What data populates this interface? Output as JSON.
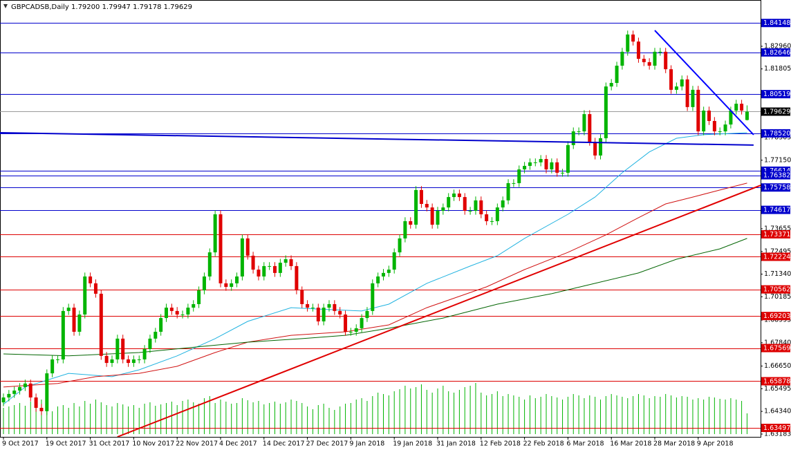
{
  "chart_data": {
    "type": "candlestick",
    "title": "GBPCADSB,Daily  1.79200 1.79947 1.79178 1.79629",
    "ylim": [
      1.6304,
      1.8532
    ],
    "yticks": [
      {
        "value": 1.8296,
        "label": "1.82960"
      },
      1.81805,
      1.78305,
      {
        "value": 1.7715,
        "label": "1.77150"
      },
      1.73655,
      1.72495,
      {
        "value": 1.7134,
        "label": "1.71340"
      },
      1.70185,
      1.68995,
      {
        "value": 1.6784,
        "label": "1.67840"
      },
      {
        "value": 1.6665,
        "label": "1.66650"
      },
      1.65495,
      {
        "value": 1.6434,
        "label": "1.64340"
      },
      1.63183
    ],
    "up_color": "#00b400",
    "down_color": "#e00000",
    "categories": [
      "9 Oct 2017",
      null,
      null,
      null,
      null,
      null,
      null,
      null,
      "19 Oct 2017",
      null,
      null,
      null,
      null,
      null,
      null,
      null,
      "31 Oct 2017",
      null,
      null,
      null,
      null,
      null,
      null,
      null,
      "10 Nov 2017",
      null,
      null,
      null,
      null,
      null,
      null,
      null,
      "22 Nov 2017",
      null,
      null,
      null,
      null,
      null,
      null,
      null,
      "4 Dec 2017",
      null,
      null,
      null,
      null,
      null,
      null,
      null,
      "14 Dec 2017",
      null,
      null,
      null,
      null,
      null,
      null,
      null,
      "27 Dec 2017",
      null,
      null,
      null,
      null,
      null,
      null,
      null,
      "9 Jan 2018",
      null,
      null,
      null,
      null,
      null,
      null,
      null,
      "19 Jan 2018",
      null,
      null,
      null,
      null,
      null,
      null,
      null,
      "31 Jan 2018",
      null,
      null,
      null,
      null,
      null,
      null,
      null,
      "12 Feb 2018",
      null,
      null,
      null,
      null,
      null,
      null,
      null,
      "22 Feb 2018",
      null,
      null,
      null,
      null,
      null,
      null,
      null,
      "6 Mar 2018",
      null,
      null,
      null,
      null,
      null,
      null,
      null,
      "16 Mar 2018",
      null,
      null,
      null,
      null,
      null,
      null,
      null,
      "28 Mar 2018",
      null,
      null,
      null,
      null,
      null,
      null,
      null,
      "9 Apr 2018",
      null,
      null,
      null,
      null,
      null,
      null,
      null,
      null,
      null
    ],
    "ohlc": [
      [
        1.648,
        1.6525,
        1.646,
        1.6505
      ],
      [
        1.6505,
        1.6543,
        1.6485,
        1.6523
      ],
      [
        1.6523,
        1.656,
        1.6503,
        1.654
      ],
      [
        1.654,
        1.6578,
        1.652,
        1.6558
      ],
      [
        1.6558,
        1.6596,
        1.6538,
        1.6576
      ],
      [
        1.6576,
        1.6596,
        1.6485,
        1.6505
      ],
      [
        1.6505,
        1.6525,
        1.6432,
        1.6452
      ],
      [
        1.6452,
        1.6472,
        1.6415,
        1.6435
      ],
      [
        1.6435,
        1.6648,
        1.6415,
        1.6628
      ],
      [
        1.6628,
        1.6719,
        1.6608,
        1.6699
      ],
      [
        1.6699,
        1.6719,
        1.6679,
        1.6699
      ],
      [
        1.6699,
        1.6966,
        1.6679,
        1.6946
      ],
      [
        1.6946,
        1.6983,
        1.6926,
        1.6963
      ],
      [
        1.6963,
        1.6983,
        1.682,
        1.684
      ],
      [
        1.684,
        1.6948,
        1.682,
        1.6928
      ],
      [
        1.6928,
        1.7142,
        1.6908,
        1.7122
      ],
      [
        1.7122,
        1.7142,
        1.7067,
        1.7087
      ],
      [
        1.7087,
        1.7107,
        1.7014,
        1.7034
      ],
      [
        1.7034,
        1.7054,
        1.6697,
        1.6717
      ],
      [
        1.6717,
        1.6737,
        1.6661,
        1.6681
      ],
      [
        1.6681,
        1.6719,
        1.6661,
        1.6699
      ],
      [
        1.6699,
        1.6825,
        1.6679,
        1.6805
      ],
      [
        1.6805,
        1.6825,
        1.6679,
        1.6699
      ],
      [
        1.6699,
        1.6719,
        1.6661,
        1.6681
      ],
      [
        1.6681,
        1.6719,
        1.6661,
        1.6699
      ],
      [
        1.6699,
        1.6719,
        1.6679,
        1.6699
      ],
      [
        1.6699,
        1.6772,
        1.6679,
        1.6752
      ],
      [
        1.6752,
        1.6825,
        1.6732,
        1.6805
      ],
      [
        1.6805,
        1.686,
        1.6785,
        1.684
      ],
      [
        1.684,
        1.693,
        1.682,
        1.691
      ],
      [
        1.691,
        1.6983,
        1.689,
        1.6963
      ],
      [
        1.6963,
        1.6983,
        1.6926,
        1.6946
      ],
      [
        1.6946,
        1.6966,
        1.6908,
        1.6928
      ],
      [
        1.6928,
        1.6948,
        1.6908,
        1.6928
      ],
      [
        1.6928,
        1.6983,
        1.6908,
        1.6963
      ],
      [
        1.6963,
        1.7001,
        1.6943,
        1.6981
      ],
      [
        1.6981,
        1.7071,
        1.6961,
        1.7051
      ],
      [
        1.7051,
        1.7142,
        1.7031,
        1.7122
      ],
      [
        1.7122,
        1.7265,
        1.7102,
        1.7245
      ],
      [
        1.7245,
        1.7459,
        1.7225,
        1.7439
      ],
      [
        1.7439,
        1.7459,
        1.7067,
        1.7087
      ],
      [
        1.7087,
        1.7107,
        1.7049,
        1.7069
      ],
      [
        1.7069,
        1.7107,
        1.7049,
        1.7087
      ],
      [
        1.7087,
        1.7142,
        1.7067,
        1.7122
      ],
      [
        1.7122,
        1.7336,
        1.7102,
        1.7316
      ],
      [
        1.7316,
        1.7336,
        1.7208,
        1.7228
      ],
      [
        1.7228,
        1.7248,
        1.7137,
        1.7157
      ],
      [
        1.7157,
        1.7177,
        1.7102,
        1.7122
      ],
      [
        1.7122,
        1.7195,
        1.7102,
        1.7175
      ],
      [
        1.7175,
        1.7195,
        1.7155,
        1.7175
      ],
      [
        1.7175,
        1.7195,
        1.712,
        1.714
      ],
      [
        1.714,
        1.7212,
        1.712,
        1.7192
      ],
      [
        1.7192,
        1.723,
        1.7172,
        1.721
      ],
      [
        1.721,
        1.723,
        1.7155,
        1.7175
      ],
      [
        1.7175,
        1.7195,
        1.7031,
        1.7051
      ],
      [
        1.7051,
        1.7071,
        1.6961,
        1.6981
      ],
      [
        1.6981,
        1.7001,
        1.6943,
        1.6963
      ],
      [
        1.6963,
        1.6983,
        1.6943,
        1.6963
      ],
      [
        1.6963,
        1.6983,
        1.6873,
        1.6893
      ],
      [
        1.6893,
        1.6983,
        1.6873,
        1.6963
      ],
      [
        1.6963,
        1.7001,
        1.6943,
        1.6981
      ],
      [
        1.6981,
        1.7001,
        1.6926,
        1.6946
      ],
      [
        1.6946,
        1.6966,
        1.6908,
        1.6928
      ],
      [
        1.6928,
        1.6948,
        1.682,
        1.684
      ],
      [
        1.684,
        1.686,
        1.682,
        1.684
      ],
      [
        1.684,
        1.6878,
        1.682,
        1.6858
      ],
      [
        1.6858,
        1.693,
        1.6838,
        1.691
      ],
      [
        1.691,
        1.6966,
        1.689,
        1.6946
      ],
      [
        1.6946,
        1.7107,
        1.6926,
        1.7087
      ],
      [
        1.7087,
        1.7142,
        1.7067,
        1.7122
      ],
      [
        1.7122,
        1.716,
        1.7102,
        1.714
      ],
      [
        1.714,
        1.7177,
        1.712,
        1.7157
      ],
      [
        1.7157,
        1.7265,
        1.7137,
        1.7245
      ],
      [
        1.7245,
        1.7336,
        1.7225,
        1.7316
      ],
      [
        1.7316,
        1.7424,
        1.7296,
        1.7404
      ],
      [
        1.7404,
        1.7424,
        1.7366,
        1.7386
      ],
      [
        1.7386,
        1.7583,
        1.7366,
        1.7563
      ],
      [
        1.7563,
        1.7583,
        1.7472,
        1.7492
      ],
      [
        1.7492,
        1.7512,
        1.7454,
        1.7474
      ],
      [
        1.7474,
        1.7494,
        1.7366,
        1.7386
      ],
      [
        1.7386,
        1.7477,
        1.7366,
        1.7457
      ],
      [
        1.7457,
        1.7494,
        1.7437,
        1.7474
      ],
      [
        1.7474,
        1.7547,
        1.7454,
        1.7527
      ],
      [
        1.7527,
        1.7565,
        1.7507,
        1.7545
      ],
      [
        1.7545,
        1.7565,
        1.7507,
        1.7527
      ],
      [
        1.7527,
        1.7547,
        1.7437,
        1.7457
      ],
      [
        1.7457,
        1.7477,
        1.7437,
        1.7457
      ],
      [
        1.7457,
        1.753,
        1.7437,
        1.751
      ],
      [
        1.751,
        1.753,
        1.7419,
        1.7439
      ],
      [
        1.7439,
        1.7459,
        1.7384,
        1.7404
      ],
      [
        1.7404,
        1.7424,
        1.7384,
        1.7404
      ],
      [
        1.7404,
        1.7494,
        1.7384,
        1.7474
      ],
      [
        1.7474,
        1.753,
        1.7454,
        1.751
      ],
      [
        1.751,
        1.7618,
        1.749,
        1.7598
      ],
      [
        1.7598,
        1.7618,
        1.7578,
        1.7598
      ],
      [
        1.7598,
        1.7688,
        1.7578,
        1.7668
      ],
      [
        1.7668,
        1.7706,
        1.7648,
        1.7686
      ],
      [
        1.7686,
        1.7724,
        1.7666,
        1.7704
      ],
      [
        1.7704,
        1.7724,
        1.7684,
        1.7704
      ],
      [
        1.7704,
        1.7741,
        1.7684,
        1.7721
      ],
      [
        1.7721,
        1.7741,
        1.7648,
        1.7668
      ],
      [
        1.7668,
        1.7724,
        1.7648,
        1.7704
      ],
      [
        1.7704,
        1.7724,
        1.7631,
        1.7651
      ],
      [
        1.7651,
        1.7671,
        1.7631,
        1.7651
      ],
      [
        1.7651,
        1.7812,
        1.7631,
        1.7792
      ],
      [
        1.7792,
        1.7882,
        1.7772,
        1.7862
      ],
      [
        1.7862,
        1.7882,
        1.7842,
        1.7862
      ],
      [
        1.7862,
        1.797,
        1.7842,
        1.795
      ],
      [
        1.795,
        1.797,
        1.7789,
        1.7809
      ],
      [
        1.7809,
        1.7829,
        1.7719,
        1.7739
      ],
      [
        1.7739,
        1.7847,
        1.7719,
        1.7827
      ],
      [
        1.7827,
        1.8111,
        1.7807,
        1.8091
      ],
      [
        1.8091,
        1.8129,
        1.8071,
        1.8109
      ],
      [
        1.8109,
        1.8217,
        1.8089,
        1.8197
      ],
      [
        1.8197,
        1.8288,
        1.8177,
        1.8268
      ],
      [
        1.8268,
        1.8376,
        1.8248,
        1.8356
      ],
      [
        1.8356,
        1.8376,
        1.83,
        1.832
      ],
      [
        1.832,
        1.834,
        1.8212,
        1.8232
      ],
      [
        1.8232,
        1.8252,
        1.8195,
        1.8215
      ],
      [
        1.8215,
        1.8235,
        1.8177,
        1.8197
      ],
      [
        1.8197,
        1.8288,
        1.8177,
        1.8268
      ],
      [
        1.8268,
        1.8288,
        1.8248,
        1.8268
      ],
      [
        1.8268,
        1.8288,
        1.8159,
        1.8179
      ],
      [
        1.8179,
        1.8199,
        1.8054,
        1.8074
      ],
      [
        1.8074,
        1.8111,
        1.8054,
        1.8091
      ],
      [
        1.8091,
        1.8147,
        1.8071,
        1.8127
      ],
      [
        1.8127,
        1.8147,
        1.7966,
        1.7986
      ],
      [
        1.7986,
        1.8094,
        1.7966,
        1.8074
      ],
      [
        1.8074,
        1.8094,
        1.7842,
        1.7862
      ],
      [
        1.7862,
        1.7988,
        1.7842,
        1.7968
      ],
      [
        1.7968,
        1.7988,
        1.7895,
        1.7915
      ],
      [
        1.7915,
        1.7935,
        1.7842,
        1.7862
      ],
      [
        1.7862,
        1.7882,
        1.7842,
        1.7862
      ],
      [
        1.7862,
        1.7917,
        1.7842,
        1.7897
      ],
      [
        1.7897,
        1.7988,
        1.7877,
        1.7968
      ],
      [
        1.7968,
        1.8023,
        1.7948,
        1.8003
      ],
      [
        1.8003,
        1.8023,
        1.7948,
        1.7968
      ],
      [
        1.792,
        1.79947,
        1.79178,
        1.79629
      ]
    ],
    "volume": {
      "color": "#00b400",
      "ylim": [
        0,
        100
      ],
      "values": [
        38,
        40,
        42,
        45,
        41,
        47,
        43,
        50,
        35,
        33,
        40,
        42,
        38,
        45,
        40,
        48,
        44,
        50,
        46,
        42,
        40,
        45,
        43,
        40,
        42,
        38,
        44,
        46,
        41,
        43,
        45,
        47,
        42,
        48,
        50,
        46,
        44,
        52,
        55,
        45,
        50,
        47,
        44,
        45,
        52,
        49,
        46,
        48,
        43,
        45,
        47,
        44,
        46,
        50,
        48,
        45,
        40,
        36,
        42,
        44,
        38,
        35,
        40,
        44,
        45,
        50,
        52,
        48,
        55,
        60,
        58,
        56,
        62,
        65,
        70,
        66,
        68,
        72,
        64,
        60,
        66,
        70,
        62,
        60,
        64,
        68,
        70,
        74,
        60,
        56,
        58,
        62,
        55,
        58,
        56,
        54,
        50,
        56,
        52,
        54,
        58,
        55,
        53,
        50,
        54,
        58,
        56,
        52,
        56,
        54,
        50,
        55,
        58,
        56,
        54,
        52,
        55,
        58,
        56,
        52,
        55,
        54,
        58,
        56,
        53,
        55,
        54,
        50,
        52,
        50,
        54,
        53,
        51,
        50,
        52,
        50,
        48,
        30
      ]
    },
    "moving_averages": [
      {
        "color": "#1fb2e0",
        "x": [
          0,
          4,
          12,
          20,
          25,
          32,
          39,
          45,
          53,
          58,
          66,
          71,
          78,
          86,
          91,
          96,
          104,
          109,
          114,
          119,
          124,
          129,
          137
        ],
        "values": [
          1.647,
          1.6558,
          1.6628,
          1.6611,
          1.6646,
          1.6717,
          1.6805,
          1.6893,
          1.6963,
          1.6956,
          1.6946,
          1.6981,
          1.7087,
          1.7175,
          1.7228,
          1.7316,
          1.7439,
          1.7527,
          1.7651,
          1.7757,
          1.7827,
          1.7845,
          1.7855
        ]
      },
      {
        "color": "#d01010",
        "x": [
          0,
          10,
          17,
          25,
          32,
          39,
          45,
          53,
          63,
          71,
          78,
          89,
          96,
          104,
          111,
          117,
          122,
          127,
          132,
          137
        ],
        "values": [
          1.6558,
          1.6576,
          1.6611,
          1.6628,
          1.6664,
          1.6734,
          1.6787,
          1.6822,
          1.684,
          1.6875,
          1.6963,
          1.7069,
          1.7157,
          1.7245,
          1.7334,
          1.7422,
          1.7492,
          1.7527,
          1.7563,
          1.7598
        ]
      },
      {
        "color": "#006400",
        "x": [
          0,
          12,
          25,
          38,
          45,
          55,
          63,
          71,
          81,
          91,
          101,
          109,
          117,
          124,
          132,
          137
        ],
        "values": [
          1.6727,
          1.6717,
          1.6734,
          1.6769,
          1.6787,
          1.6805,
          1.6822,
          1.6858,
          1.691,
          1.6981,
          1.7034,
          1.7087,
          1.714,
          1.721,
          1.7263,
          1.7316
        ]
      }
    ],
    "trendlines": [
      {
        "color": "#e00000",
        "x": [
          21,
          139.5
        ],
        "values": [
          1.6304,
          1.7587
        ]
      },
      {
        "color": "#0000ff",
        "x": [
          120,
          138.2
        ],
        "values": [
          1.8377,
          1.7845
        ]
      },
      {
        "color": "#0000cc",
        "x": [
          -0.64,
          138.2
        ],
        "values": [
          1.7855,
          1.7792
        ]
      }
    ],
    "levels": [
      {
        "value": 1.84148,
        "color": "#0000cc"
      },
      {
        "value": 1.82646,
        "color": "#0000cc"
      },
      {
        "value": 1.80519,
        "color": "#0000cc"
      },
      {
        "value": 1.7852,
        "label": "1.78520",
        "color": "#0000cc"
      },
      {
        "value": 1.76614,
        "color": "#0000cc"
      },
      {
        "value": 1.76382,
        "color": "#0000cc"
      },
      {
        "value": 1.75758,
        "color": "#0000cc"
      },
      {
        "value": 1.74617,
        "color": "#0000cc"
      },
      {
        "value": 1.73371,
        "color": "#dd0000"
      },
      {
        "value": 1.72224,
        "color": "#dd0000"
      },
      {
        "value": 1.70562,
        "color": "#dd0000"
      },
      {
        "value": 1.69203,
        "color": "#dd0000"
      },
      {
        "value": 1.67569,
        "color": "#dd0000"
      },
      {
        "value": 1.65878,
        "color": "#dd0000"
      },
      {
        "value": 1.63497,
        "color": "#dd0000"
      }
    ]
  }
}
